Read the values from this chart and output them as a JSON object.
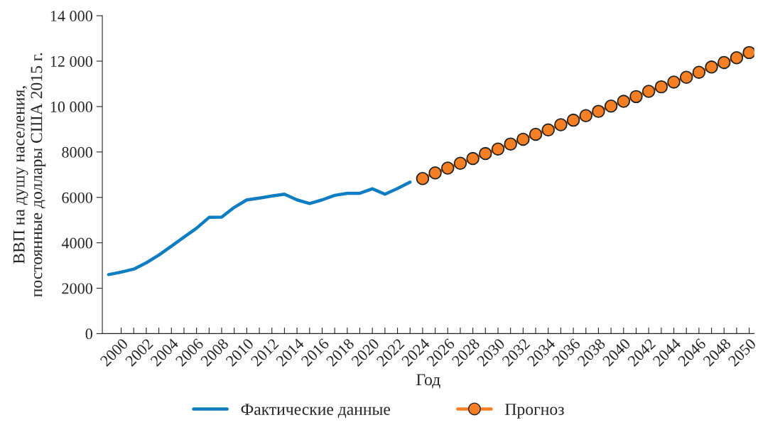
{
  "chart_data": {
    "type": "line",
    "xlabel": "Год",
    "ylabel": "ВВП на душу населения,\nпостоянные доллары США 2015 г.",
    "xlim": [
      1998.5,
      2050.4
    ],
    "ylim": [
      0,
      14000
    ],
    "xticks": [
      2000,
      {
        "value": 2001,
        "label": null
      },
      2002,
      {
        "value": 2003,
        "label": null
      },
      2004,
      {
        "value": 2005,
        "label": null
      },
      2006,
      {
        "value": 2007,
        "label": null
      },
      2008,
      {
        "value": 2009,
        "label": null
      },
      2010,
      {
        "value": 2011,
        "label": null
      },
      2012,
      {
        "value": 2013,
        "label": null
      },
      2014,
      {
        "value": 2015,
        "label": null
      },
      2016,
      {
        "value": 2017,
        "label": null
      },
      2018,
      {
        "value": 2019,
        "label": null
      },
      2020,
      {
        "value": 2021,
        "label": null
      },
      2022,
      {
        "value": 2023,
        "label": null
      },
      2024,
      {
        "value": 2025,
        "label": null
      },
      2026,
      {
        "value": 2027,
        "label": null
      },
      2028,
      {
        "value": 2029,
        "label": null
      },
      2030,
      {
        "value": 2031,
        "label": null
      },
      2032,
      {
        "value": 2033,
        "label": null
      },
      2034,
      {
        "value": 2035,
        "label": null
      },
      2036,
      {
        "value": 2037,
        "label": null
      },
      2038,
      {
        "value": 2039,
        "label": null
      },
      2040,
      {
        "value": 2041,
        "label": null
      },
      2042,
      {
        "value": 2043,
        "label": null
      },
      2044,
      {
        "value": 2045,
        "label": null
      },
      2046,
      {
        "value": 2047,
        "label": null
      },
      2048,
      {
        "value": 2049,
        "label": null
      },
      2050
    ],
    "yticks": [
      0,
      2000,
      4000,
      6000,
      8000,
      {
        "value": 10000,
        "label": "10 000"
      },
      {
        "value": 12000,
        "label": "12 000"
      },
      {
        "value": 14000,
        "label": "14 000"
      }
    ],
    "grid": false,
    "legend": "bottom",
    "series": [
      {
        "name": "Фактические данные",
        "color": "#0f7dc2",
        "marker": "none",
        "x": [
          1999,
          2000,
          2001,
          2002,
          2003,
          2004,
          2005,
          2006,
          2007,
          2008,
          2009,
          2010,
          2011,
          2012,
          2013,
          2014,
          2015,
          2016,
          2017,
          2018,
          2019,
          2020,
          2021,
          2022,
          2023
        ],
        "values": [
          2600,
          2710,
          2840,
          3120,
          3460,
          3850,
          4250,
          4640,
          5120,
          5130,
          5560,
          5890,
          5970,
          6060,
          6140,
          5890,
          5730,
          5890,
          6090,
          6180,
          6180,
          6380,
          6140,
          6390,
          6670
        ]
      },
      {
        "name": "Прогноз",
        "color": "#f47f24",
        "marker": "circle",
        "x": [
          2024,
          2025,
          2026,
          2027,
          2028,
          2029,
          2030,
          2031,
          2032,
          2033,
          2034,
          2035,
          2036,
          2037,
          2038,
          2039,
          2040,
          2041,
          2042,
          2043,
          2044,
          2045,
          2046,
          2047,
          2048,
          2049,
          2050
        ],
        "values": [
          6830,
          7080,
          7290,
          7500,
          7710,
          7930,
          8130,
          8350,
          8560,
          8780,
          8970,
          9200,
          9400,
          9600,
          9790,
          10020,
          10230,
          10440,
          10670,
          10870,
          11080,
          11290,
          11510,
          11740,
          11940,
          12150,
          12380
        ]
      }
    ]
  }
}
